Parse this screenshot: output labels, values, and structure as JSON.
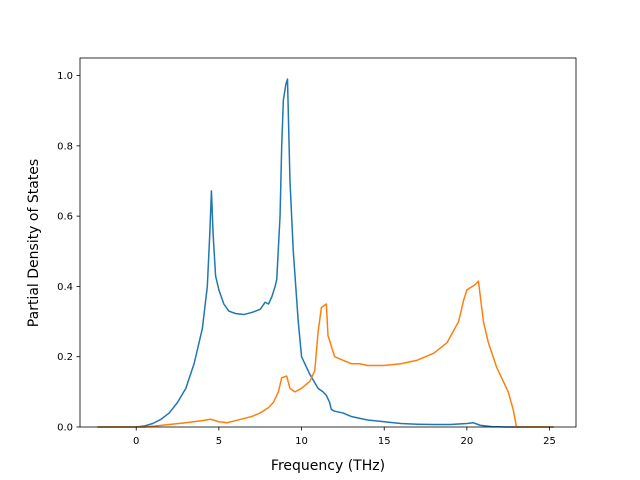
{
  "chart_data": {
    "type": "line",
    "title": "",
    "xlabel": "Frequency (THz)",
    "ylabel": "Partial Density of States",
    "xlim": [
      -3.4,
      26.6
    ],
    "ylim": [
      0.0,
      1.05
    ],
    "xticks": [
      0,
      5,
      10,
      15,
      20,
      25
    ],
    "yticks": [
      0.0,
      0.2,
      0.4,
      0.6,
      0.8,
      1.0
    ],
    "xtick_labels": [
      "0",
      "5",
      "10",
      "15",
      "20",
      "25"
    ],
    "ytick_labels": [
      "0.0",
      "0.2",
      "0.4",
      "0.6",
      "0.8",
      "1.0"
    ],
    "grid": false,
    "legend": "none",
    "series": [
      {
        "color": "#1f77b4",
        "points": [
          [
            -2.3,
            0.0
          ],
          [
            0.0,
            0.0
          ],
          [
            0.5,
            0.003
          ],
          [
            1.0,
            0.01
          ],
          [
            1.5,
            0.022
          ],
          [
            2.0,
            0.04
          ],
          [
            2.5,
            0.07
          ],
          [
            3.0,
            0.11
          ],
          [
            3.5,
            0.18
          ],
          [
            4.0,
            0.28
          ],
          [
            4.3,
            0.4
          ],
          [
            4.45,
            0.55
          ],
          [
            4.55,
            0.672
          ],
          [
            4.65,
            0.55
          ],
          [
            4.8,
            0.43
          ],
          [
            5.0,
            0.39
          ],
          [
            5.3,
            0.35
          ],
          [
            5.6,
            0.33
          ],
          [
            6.0,
            0.323
          ],
          [
            6.5,
            0.32
          ],
          [
            7.0,
            0.326
          ],
          [
            7.5,
            0.335
          ],
          [
            7.8,
            0.355
          ],
          [
            8.0,
            0.35
          ],
          [
            8.2,
            0.37
          ],
          [
            8.4,
            0.4
          ],
          [
            8.5,
            0.42
          ],
          [
            8.7,
            0.6
          ],
          [
            8.8,
            0.8
          ],
          [
            8.9,
            0.93
          ],
          [
            9.05,
            0.975
          ],
          [
            9.15,
            0.99
          ],
          [
            9.3,
            0.7
          ],
          [
            9.5,
            0.5
          ],
          [
            9.8,
            0.3
          ],
          [
            10.0,
            0.2
          ],
          [
            10.5,
            0.15
          ],
          [
            11.0,
            0.11
          ],
          [
            11.3,
            0.1
          ],
          [
            11.5,
            0.09
          ],
          [
            11.7,
            0.07
          ],
          [
            11.8,
            0.05
          ],
          [
            12.0,
            0.045
          ],
          [
            12.5,
            0.04
          ],
          [
            13.0,
            0.03
          ],
          [
            14.0,
            0.02
          ],
          [
            15.0,
            0.015
          ],
          [
            16.0,
            0.01
          ],
          [
            17.0,
            0.008
          ],
          [
            18.0,
            0.007
          ],
          [
            19.0,
            0.007
          ],
          [
            20.0,
            0.01
          ],
          [
            20.4,
            0.012
          ],
          [
            20.8,
            0.005
          ],
          [
            21.5,
            0.001
          ],
          [
            22.5,
            0.0
          ],
          [
            25.2,
            0.0
          ]
        ]
      },
      {
        "color": "#ff7f0e",
        "points": [
          [
            -2.3,
            0.0
          ],
          [
            0.0,
            0.0
          ],
          [
            0.5,
            0.0
          ],
          [
            1.0,
            0.002
          ],
          [
            2.0,
            0.007
          ],
          [
            3.0,
            0.012
          ],
          [
            4.0,
            0.018
          ],
          [
            4.5,
            0.022
          ],
          [
            5.0,
            0.015
          ],
          [
            5.5,
            0.012
          ],
          [
            6.0,
            0.018
          ],
          [
            7.0,
            0.03
          ],
          [
            7.5,
            0.04
          ],
          [
            8.0,
            0.055
          ],
          [
            8.3,
            0.07
          ],
          [
            8.6,
            0.1
          ],
          [
            8.8,
            0.14
          ],
          [
            9.1,
            0.145
          ],
          [
            9.3,
            0.11
          ],
          [
            9.6,
            0.1
          ],
          [
            10.0,
            0.11
          ],
          [
            10.5,
            0.13
          ],
          [
            10.8,
            0.16
          ],
          [
            11.0,
            0.27
          ],
          [
            11.2,
            0.34
          ],
          [
            11.5,
            0.35
          ],
          [
            11.6,
            0.26
          ],
          [
            12.0,
            0.2
          ],
          [
            12.5,
            0.19
          ],
          [
            13.0,
            0.18
          ],
          [
            13.5,
            0.18
          ],
          [
            14.0,
            0.175
          ],
          [
            15.0,
            0.175
          ],
          [
            16.0,
            0.18
          ],
          [
            17.0,
            0.19
          ],
          [
            18.0,
            0.21
          ],
          [
            18.8,
            0.24
          ],
          [
            19.5,
            0.3
          ],
          [
            19.8,
            0.36
          ],
          [
            20.0,
            0.39
          ],
          [
            20.5,
            0.405
          ],
          [
            20.7,
            0.415
          ],
          [
            21.0,
            0.3
          ],
          [
            21.3,
            0.24
          ],
          [
            21.8,
            0.17
          ],
          [
            22.5,
            0.1
          ],
          [
            22.8,
            0.05
          ],
          [
            23.0,
            0.0
          ],
          [
            25.2,
            0.0
          ]
        ]
      }
    ]
  }
}
